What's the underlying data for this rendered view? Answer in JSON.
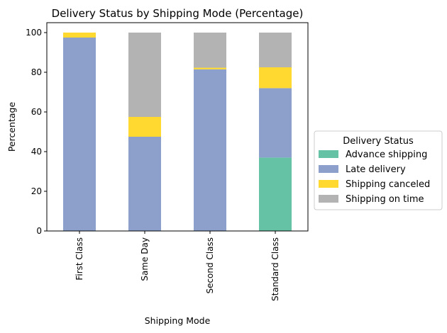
{
  "chart_data": {
    "type": "bar",
    "stacked": true,
    "title": "Delivery Status by Shipping Mode (Percentage)",
    "xlabel": "Shipping Mode",
    "ylabel": "Percentage",
    "ylim": [
      0,
      105
    ],
    "yticks": [
      0,
      20,
      40,
      60,
      80,
      100
    ],
    "categories": [
      "First Class",
      "Same Day",
      "Second Class",
      "Standard Class"
    ],
    "legend": {
      "title": "Delivery Status",
      "placement": "right"
    },
    "series": [
      {
        "name": "Advance shipping",
        "color": "#66c2a5",
        "values": [
          0,
          0,
          0,
          37.0
        ]
      },
      {
        "name": "Late delivery",
        "color": "#8da0cb",
        "values": [
          97.5,
          47.5,
          81.5,
          35.0
        ]
      },
      {
        "name": "Shipping canceled",
        "color": "#ffd92f",
        "values": [
          2.5,
          10.0,
          0.8,
          10.5
        ]
      },
      {
        "name": "Shipping on time",
        "color": "#b3b3b3",
        "values": [
          0,
          42.5,
          17.7,
          17.5
        ]
      }
    ]
  }
}
